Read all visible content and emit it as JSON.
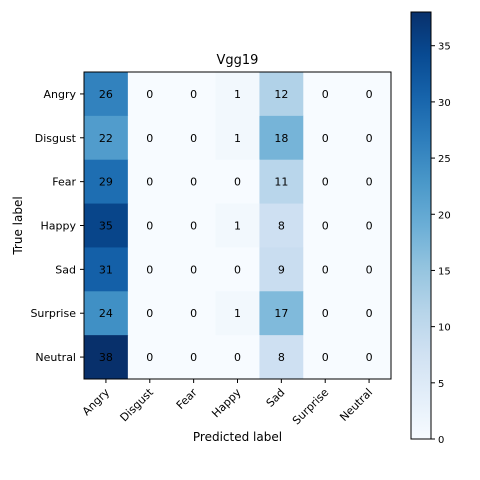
{
  "chart_data": {
    "type": "heatmap",
    "title": "Vgg19",
    "xlabel": "Predicted label",
    "ylabel": "True label",
    "x_categories": [
      "Angry",
      "Disgust",
      "Fear",
      "Happy",
      "Sad",
      "Surprise",
      "Neutral"
    ],
    "y_categories": [
      "Angry",
      "Disgust",
      "Fear",
      "Happy",
      "Sad",
      "Surprise",
      "Neutral"
    ],
    "values": [
      [
        26,
        0,
        0,
        1,
        12,
        0,
        0
      ],
      [
        22,
        0,
        0,
        1,
        18,
        0,
        0
      ],
      [
        29,
        0,
        0,
        0,
        11,
        0,
        0
      ],
      [
        35,
        0,
        0,
        1,
        8,
        0,
        0
      ],
      [
        31,
        0,
        0,
        0,
        9,
        0,
        0
      ],
      [
        24,
        0,
        0,
        1,
        17,
        0,
        0
      ],
      [
        38,
        0,
        0,
        0,
        8,
        0,
        0
      ]
    ],
    "colormap": "Blues",
    "colorbar": {
      "min": 0,
      "max": 38,
      "ticks": [
        0,
        5,
        10,
        15,
        20,
        25,
        30,
        35
      ]
    },
    "tick_label_rotation_x": 45,
    "grid": false
  }
}
